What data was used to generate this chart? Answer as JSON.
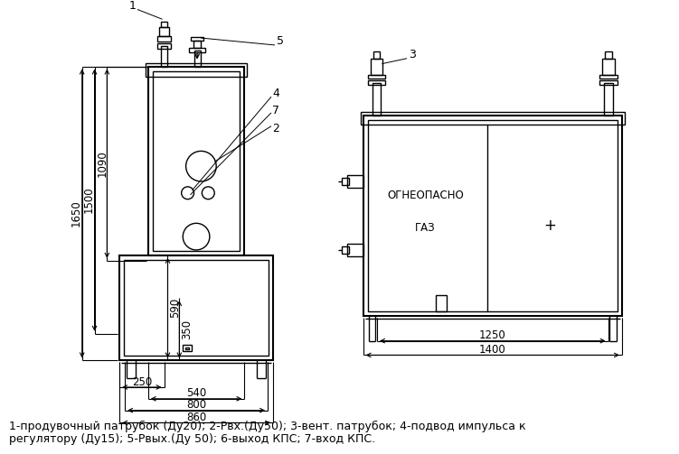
{
  "bg_color": "#ffffff",
  "line_color": "#000000",
  "caption_line1": "1-продувочный патрубок (Ду20); 2-Рвх.(Ду50); 3-вент. патрубок; 4-подвод импульса к",
  "caption_line2": "регулятору (Ду15); 5-Рвых.(Ду 50); 6-выход КПС; 7-вход КПС.",
  "caption_fontsize": 9.0,
  "dim_fontsize": 8.5
}
